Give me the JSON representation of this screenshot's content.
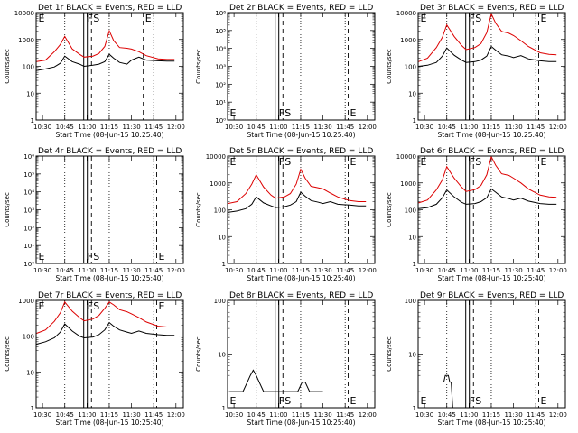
{
  "figure": {
    "legend_text": "BLACK = Events, RED = LLD",
    "xlabel": "Start Time (08-Jun-15 10:25:40)",
    "ylabel": "Counts/sec",
    "colors": {
      "events": "#000000",
      "lld": "#dd0000",
      "axes": "#000000"
    }
  },
  "chart_data": [
    {
      "type": "line",
      "panel": "Det 1r",
      "title": "Det 1r BLACK = Events, RED = LLD",
      "xlabel": "Start Time (08-Jun-15 10:25:40)",
      "ylabel": "Counts/sec",
      "scale": "log",
      "ylim": [
        1,
        10000
      ],
      "yticks": [
        "1",
        "10",
        "100",
        "1000",
        "10000"
      ],
      "xticks": [
        "10:30",
        "10:45",
        "11:00",
        "11:15",
        "11:30",
        "11:45",
        "12:00"
      ],
      "xlim": [
        "10:25:40",
        "12:05"
      ],
      "markers": [
        {
          "label": "E",
          "x": "10:26"
        },
        {
          "label": "F",
          "x": "10:59"
        },
        {
          "label": "S",
          "x": "11:03"
        },
        {
          "label": "E",
          "x": "11:38"
        }
      ],
      "series": [
        {
          "name": "Events",
          "x": [
            "10:26",
            "10:32",
            "10:38",
            "10:42",
            "10:45",
            "10:50",
            "10:55",
            "10:58",
            "11:04",
            "11:08",
            "11:12",
            "11:15",
            "11:18",
            "11:22",
            "11:27",
            "11:30",
            "11:35",
            "11:40",
            "11:48",
            "11:54",
            "11:59"
          ],
          "values": [
            70,
            80,
            95,
            130,
            240,
            150,
            120,
            100,
            110,
            120,
            150,
            280,
            200,
            140,
            120,
            170,
            220,
            170,
            160,
            155,
            155
          ]
        },
        {
          "name": "LLD",
          "x": [
            "10:26",
            "10:32",
            "10:38",
            "10:42",
            "10:45",
            "10:50",
            "10:55",
            "10:58",
            "11:04",
            "11:08",
            "11:12",
            "11:15",
            "11:18",
            "11:22",
            "11:27",
            "11:30",
            "11:35",
            "11:40",
            "11:48",
            "11:54",
            "11:59"
          ],
          "values": [
            150,
            170,
            350,
            650,
            1300,
            450,
            280,
            220,
            240,
            300,
            550,
            2100,
            900,
            500,
            470,
            440,
            350,
            250,
            190,
            180,
            180
          ]
        }
      ]
    },
    {
      "type": "line",
      "panel": "Det 2r",
      "title": "Det 2r BLACK = Events, RED = LLD",
      "xlabel": "Start Time (08-Jun-15 10:25:40)",
      "ylabel": "Counts/sec",
      "scale": "log",
      "ylim": [
        1,
        1000000
      ],
      "yticks": [
        "10⁰",
        "10¹",
        "10²",
        "10³",
        "10⁴",
        "10⁵",
        "10⁶"
      ],
      "xticks": [
        "10:30",
        "10:45",
        "11:00",
        "11:15",
        "11:30",
        "11:45",
        "12:00"
      ],
      "xlim": [
        "10:25:40",
        "12:05"
      ],
      "markers": [
        {
          "label": "E",
          "x": "10:26"
        },
        {
          "label": "F",
          "x": "10:59"
        },
        {
          "label": "S",
          "x": "11:03"
        },
        {
          "label": "E",
          "x": "11:47"
        }
      ],
      "series": []
    },
    {
      "type": "line",
      "panel": "Det 3r",
      "title": "Det 3r BLACK = Events, RED = LLD",
      "xlabel": "Start Time (08-Jun-15 10:25:40)",
      "ylabel": "Counts/sec",
      "scale": "log",
      "ylim": [
        1,
        10000
      ],
      "yticks": [
        "1",
        "10",
        "100",
        "1000",
        "10000"
      ],
      "xticks": [
        "10:30",
        "10:45",
        "11:00",
        "11:15",
        "11:30",
        "11:45",
        "12:00"
      ],
      "xlim": [
        "10:25:40",
        "12:05"
      ],
      "markers": [
        {
          "label": "E",
          "x": "10:26"
        },
        {
          "label": "F",
          "x": "10:59"
        },
        {
          "label": "S",
          "x": "11:03"
        },
        {
          "label": "E",
          "x": "11:47"
        }
      ],
      "series": [
        {
          "name": "Events",
          "x": [
            "10:26",
            "10:32",
            "10:38",
            "10:42",
            "10:45",
            "10:50",
            "10:55",
            "10:58",
            "11:04",
            "11:08",
            "11:12",
            "11:15",
            "11:18",
            "11:22",
            "11:27",
            "11:30",
            "11:35",
            "11:40",
            "11:48",
            "11:54",
            "11:59"
          ],
          "values": [
            100,
            110,
            140,
            240,
            480,
            260,
            170,
            140,
            150,
            170,
            240,
            550,
            400,
            270,
            240,
            210,
            250,
            190,
            160,
            150,
            150
          ]
        },
        {
          "name": "LLD",
          "x": [
            "10:26",
            "10:32",
            "10:38",
            "10:42",
            "10:45",
            "10:50",
            "10:55",
            "10:58",
            "11:04",
            "11:08",
            "11:12",
            "11:15",
            "11:18",
            "11:22",
            "11:27",
            "11:30",
            "11:35",
            "11:40",
            "11:48",
            "11:54",
            "11:59"
          ],
          "values": [
            150,
            200,
            500,
            1200,
            3500,
            1300,
            600,
            420,
            500,
            700,
            1800,
            9000,
            4000,
            2000,
            1700,
            1400,
            900,
            550,
            320,
            280,
            270
          ]
        }
      ]
    },
    {
      "type": "line",
      "panel": "Det 4r",
      "title": "Det 4r BLACK = Events, RED = LLD",
      "xlabel": "Start Time (08-Jun-15 10:25:40)",
      "ylabel": "Counts/sec",
      "scale": "log",
      "ylim": [
        1,
        1000000
      ],
      "yticks": [
        "10⁰",
        "10¹",
        "10²",
        "10³",
        "10⁴",
        "10⁵",
        "10⁶"
      ],
      "xticks": [
        "10:30",
        "10:45",
        "11:00",
        "11:15",
        "11:30",
        "11:45",
        "12:00"
      ],
      "xlim": [
        "10:25:40",
        "12:05"
      ],
      "markers": [
        {
          "label": "E",
          "x": "10:26"
        },
        {
          "label": "F",
          "x": "10:59"
        },
        {
          "label": "S",
          "x": "11:03"
        },
        {
          "label": "E",
          "x": "11:47"
        }
      ],
      "series": []
    },
    {
      "type": "line",
      "panel": "Det 5r",
      "title": "Det 5r BLACK = Events, RED = LLD",
      "xlabel": "Start Time (08-Jun-15 10:25:40)",
      "ylabel": "Counts/sec",
      "scale": "log",
      "ylim": [
        1,
        10000
      ],
      "yticks": [
        "1",
        "10",
        "100",
        "1000",
        "10000"
      ],
      "xticks": [
        "10:30",
        "10:45",
        "11:00",
        "11:15",
        "11:30",
        "11:45",
        "12:00"
      ],
      "xlim": [
        "10:25:40",
        "12:05"
      ],
      "markers": [
        {
          "label": "E",
          "x": "10:26"
        },
        {
          "label": "F",
          "x": "10:59"
        },
        {
          "label": "S",
          "x": "11:03"
        },
        {
          "label": "E",
          "x": "11:47"
        }
      ],
      "series": [
        {
          "name": "Events",
          "x": [
            "10:26",
            "10:32",
            "10:38",
            "10:42",
            "10:45",
            "10:50",
            "10:55",
            "10:58",
            "11:04",
            "11:08",
            "11:12",
            "11:15",
            "11:18",
            "11:22",
            "11:27",
            "11:30",
            "11:35",
            "11:40",
            "11:48",
            "11:54",
            "11:59"
          ],
          "values": [
            80,
            90,
            110,
            160,
            300,
            180,
            140,
            120,
            130,
            150,
            200,
            450,
            320,
            220,
            190,
            170,
            200,
            160,
            150,
            140,
            140
          ]
        },
        {
          "name": "LLD",
          "x": [
            "10:26",
            "10:32",
            "10:38",
            "10:42",
            "10:45",
            "10:50",
            "10:55",
            "10:58",
            "11:04",
            "11:08",
            "11:12",
            "11:15",
            "11:18",
            "11:22",
            "11:27",
            "11:30",
            "11:35",
            "11:40",
            "11:48",
            "11:54",
            "11:59"
          ],
          "values": [
            170,
            200,
            400,
            900,
            2000,
            700,
            350,
            270,
            300,
            400,
            900,
            3200,
            1500,
            750,
            650,
            600,
            420,
            300,
            220,
            200,
            200
          ]
        }
      ]
    },
    {
      "type": "line",
      "panel": "Det 6r",
      "title": "Det 6r BLACK = Events, RED = LLD",
      "xlabel": "Start Time (08-Jun-15 10:25:40)",
      "ylabel": "Counts/sec",
      "scale": "log",
      "ylim": [
        1,
        10000
      ],
      "yticks": [
        "1",
        "10",
        "100",
        "1000",
        "10000"
      ],
      "xticks": [
        "10:30",
        "10:45",
        "11:00",
        "11:15",
        "11:30",
        "11:45",
        "12:00"
      ],
      "xlim": [
        "10:25:40",
        "12:05"
      ],
      "markers": [
        {
          "label": "E",
          "x": "10:26"
        },
        {
          "label": "F",
          "x": "10:59"
        },
        {
          "label": "S",
          "x": "11:03"
        },
        {
          "label": "E",
          "x": "11:47"
        }
      ],
      "series": [
        {
          "name": "Events",
          "x": [
            "10:26",
            "10:32",
            "10:38",
            "10:42",
            "10:45",
            "10:50",
            "10:55",
            "10:58",
            "11:04",
            "11:08",
            "11:12",
            "11:15",
            "11:18",
            "11:22",
            "11:27",
            "11:30",
            "11:35",
            "11:40",
            "11:48",
            "11:54",
            "11:59"
          ],
          "values": [
            110,
            120,
            160,
            280,
            550,
            300,
            190,
            160,
            170,
            200,
            280,
            600,
            450,
            300,
            260,
            230,
            270,
            210,
            170,
            160,
            160
          ]
        },
        {
          "name": "LLD",
          "x": [
            "10:26",
            "10:32",
            "10:38",
            "10:42",
            "10:45",
            "10:50",
            "10:55",
            "10:58",
            "11:04",
            "11:08",
            "11:12",
            "11:15",
            "11:18",
            "11:22",
            "11:27",
            "11:30",
            "11:35",
            "11:40",
            "11:48",
            "11:54",
            "11:59"
          ],
          "values": [
            180,
            230,
            550,
            1300,
            4000,
            1500,
            700,
            480,
            560,
            800,
            2000,
            9500,
            4500,
            2200,
            1900,
            1500,
            1000,
            600,
            350,
            300,
            290
          ]
        }
      ]
    },
    {
      "type": "line",
      "panel": "Det 7r",
      "title": "Det 7r BLACK = Events, RED = LLD",
      "xlabel": "Start Time (08-Jun-15 10:25:40)",
      "ylabel": "Counts/sec",
      "scale": "log",
      "ylim": [
        1,
        1000
      ],
      "yticks": [
        "1",
        "10",
        "100",
        "1000"
      ],
      "xticks": [
        "10:30",
        "10:45",
        "11:00",
        "11:15",
        "11:30",
        "11:45",
        "12:00"
      ],
      "xlim": [
        "10:25:40",
        "12:05"
      ],
      "markers": [
        {
          "label": "E",
          "x": "10:26"
        },
        {
          "label": "F",
          "x": "10:59"
        },
        {
          "label": "S",
          "x": "11:03"
        },
        {
          "label": "E",
          "x": "11:47"
        }
      ],
      "series": [
        {
          "name": "Events",
          "x": [
            "10:26",
            "10:32",
            "10:38",
            "10:42",
            "10:45",
            "10:50",
            "10:55",
            "10:58",
            "11:04",
            "11:08",
            "11:12",
            "11:15",
            "11:18",
            "11:22",
            "11:27",
            "11:30",
            "11:35",
            "11:40",
            "11:48",
            "11:54",
            "11:59"
          ],
          "values": [
            60,
            70,
            90,
            130,
            220,
            140,
            100,
            90,
            95,
            110,
            150,
            240,
            190,
            150,
            130,
            120,
            140,
            120,
            110,
            105,
            105
          ]
        },
        {
          "name": "LLD",
          "x": [
            "10:26",
            "10:32",
            "10:38",
            "10:42",
            "10:45",
            "10:50",
            "10:55",
            "10:58",
            "11:04",
            "11:08",
            "11:12",
            "11:15",
            "11:18",
            "11:22",
            "11:27",
            "11:30",
            "11:35",
            "11:40",
            "11:48",
            "11:54",
            "11:59"
          ],
          "values": [
            120,
            150,
            260,
            450,
            900,
            500,
            330,
            270,
            300,
            380,
            600,
            900,
            750,
            550,
            480,
            420,
            330,
            250,
            190,
            180,
            180
          ]
        }
      ]
    },
    {
      "type": "line",
      "panel": "Det 8r",
      "title": "Det 8r BLACK = Events, RED = LLD",
      "xlabel": "Start Time (08-Jun-15 10:25:40)",
      "ylabel": "Counts/sec",
      "scale": "log",
      "ylim": [
        1,
        100
      ],
      "yticks": [
        "1",
        "10",
        "100"
      ],
      "xticks": [
        "10:30",
        "10:45",
        "11:00",
        "11:15",
        "11:30",
        "11:45",
        "12:00"
      ],
      "xlim": [
        "10:25:40",
        "12:05"
      ],
      "markers": [
        {
          "label": "E",
          "x": "10:26"
        },
        {
          "label": "F",
          "x": "10:59"
        },
        {
          "label": "S",
          "x": "11:03"
        },
        {
          "label": "E",
          "x": "11:47"
        }
      ],
      "series": [
        {
          "name": "Events",
          "x": [
            "10:27",
            "10:30",
            "10:33",
            "10:36",
            "10:39",
            "10:41",
            "10:43",
            "10:45",
            "10:47",
            "10:50",
            "10:53",
            "10:56",
            "10:59",
            "11:04",
            "11:07",
            "11:10",
            "11:13",
            "11:16",
            "11:18",
            "11:21",
            "11:24",
            "11:27",
            "11:30"
          ],
          "values": [
            2,
            2,
            2,
            2,
            3,
            4,
            5,
            4,
            3,
            2,
            2,
            2,
            2,
            2,
            2,
            2,
            2,
            3,
            3,
            2,
            2,
            2,
            2
          ]
        }
      ]
    },
    {
      "type": "line",
      "panel": "Det 9r",
      "title": "Det 9r BLACK = Events, RED = LLD",
      "xlabel": "Start Time (08-Jun-15 10:25:40)",
      "ylabel": "Counts/sec",
      "scale": "log",
      "ylim": [
        1,
        100
      ],
      "yticks": [
        "1",
        "10",
        "100"
      ],
      "xticks": [
        "10:30",
        "10:45",
        "11:00",
        "11:15",
        "11:30",
        "11:45",
        "12:00"
      ],
      "xlim": [
        "10:25:40",
        "12:05"
      ],
      "markers": [
        {
          "label": "E",
          "x": "10:26"
        },
        {
          "label": "F",
          "x": "10:59"
        },
        {
          "label": "S",
          "x": "11:03"
        },
        {
          "label": "E",
          "x": "11:47"
        }
      ],
      "series": [
        {
          "name": "Events",
          "x": [
            "10:43",
            "10:44",
            "10:45",
            "10:46",
            "10:47",
            "10:48",
            "10:49"
          ],
          "values": [
            3,
            4,
            4,
            4,
            3,
            3,
            1
          ]
        }
      ]
    }
  ]
}
